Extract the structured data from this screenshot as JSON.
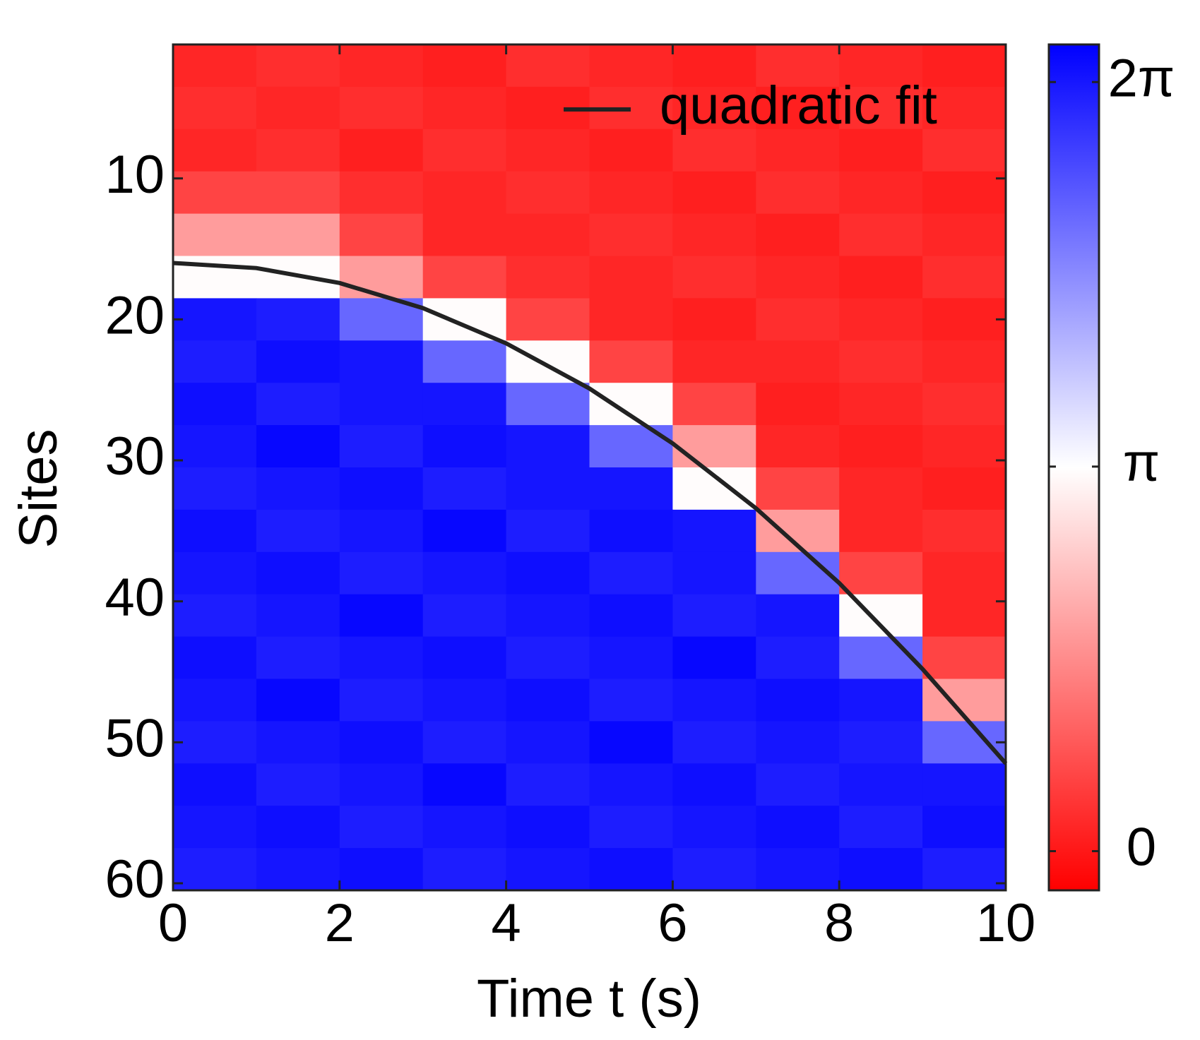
{
  "chart_data": {
    "type": "heatmap",
    "xlabel": "Time t (s)",
    "ylabel": "Sites",
    "x": [
      0.5,
      1.5,
      2.5,
      3.5,
      4.5,
      5.5,
      6.5,
      7.5,
      8.5,
      9.5
    ],
    "y": [
      2,
      5,
      8,
      11,
      14,
      17,
      20,
      23,
      26,
      29,
      32,
      35,
      38,
      41,
      44,
      47,
      50,
      53,
      56,
      59
    ],
    "z": [
      [
        0.2,
        0.3,
        0.2,
        0.1,
        0.3,
        0.2,
        0.1,
        0.3,
        0.2,
        0.1
      ],
      [
        0.3,
        0.2,
        0.3,
        0.2,
        0.1,
        0.3,
        0.2,
        0.1,
        0.3,
        0.2
      ],
      [
        0.2,
        0.3,
        0.1,
        0.3,
        0.2,
        0.1,
        0.3,
        0.2,
        0.1,
        0.3
      ],
      [
        0.6,
        0.6,
        0.3,
        0.2,
        0.3,
        0.2,
        0.1,
        0.3,
        0.2,
        0.1
      ],
      [
        1.8,
        1.8,
        0.6,
        0.2,
        0.2,
        0.3,
        0.2,
        0.1,
        0.3,
        0.2
      ],
      [
        3.1,
        3.1,
        1.8,
        0.6,
        0.3,
        0.2,
        0.3,
        0.2,
        0.1,
        0.3
      ],
      [
        6.3,
        6.2,
        5.2,
        3.1,
        0.6,
        0.2,
        0.1,
        0.3,
        0.2,
        0.1
      ],
      [
        6.2,
        6.4,
        6.3,
        5.2,
        3.1,
        0.6,
        0.2,
        0.2,
        0.3,
        0.2
      ],
      [
        6.4,
        6.2,
        6.3,
        6.3,
        5.2,
        3.1,
        0.6,
        0.1,
        0.2,
        0.3
      ],
      [
        6.3,
        6.5,
        6.2,
        6.4,
        6.3,
        5.2,
        1.8,
        0.2,
        0.1,
        0.2
      ],
      [
        6.2,
        6.3,
        6.4,
        6.2,
        6.3,
        6.3,
        3.1,
        0.6,
        0.2,
        0.1
      ],
      [
        6.4,
        6.2,
        6.3,
        6.5,
        6.2,
        6.4,
        6.3,
        1.8,
        0.2,
        0.3
      ],
      [
        6.3,
        6.4,
        6.2,
        6.3,
        6.4,
        6.2,
        6.3,
        5.2,
        0.6,
        0.2
      ],
      [
        6.2,
        6.3,
        6.5,
        6.2,
        6.3,
        6.4,
        6.2,
        6.3,
        3.1,
        0.2
      ],
      [
        6.4,
        6.2,
        6.3,
        6.4,
        6.2,
        6.3,
        6.5,
        6.2,
        5.2,
        0.6
      ],
      [
        6.3,
        6.5,
        6.2,
        6.3,
        6.4,
        6.2,
        6.3,
        6.4,
        6.3,
        1.8
      ],
      [
        6.2,
        6.3,
        6.4,
        6.2,
        6.3,
        6.5,
        6.2,
        6.3,
        6.2,
        5.2
      ],
      [
        6.4,
        6.2,
        6.3,
        6.5,
        6.2,
        6.3,
        6.4,
        6.2,
        6.3,
        6.3
      ],
      [
        6.3,
        6.4,
        6.2,
        6.3,
        6.4,
        6.2,
        6.3,
        6.4,
        6.2,
        6.4
      ],
      [
        6.2,
        6.3,
        6.4,
        6.2,
        6.3,
        6.4,
        6.2,
        6.3,
        6.4,
        6.2
      ]
    ],
    "colormap": [
      "#ff0000",
      "#ffffff",
      "#0000ff"
    ],
    "clim": [
      -0.32,
      6.59
    ],
    "cticks": [
      0,
      {
        "value": 3.1416,
        "label": "π"
      },
      {
        "value": 6.2832,
        "label": "2π"
      }
    ],
    "xlim": [
      0,
      10
    ],
    "xticks": [
      0,
      2,
      4,
      6,
      8,
      10
    ],
    "ylim": [
      0.5,
      60.5
    ],
    "yticks": [
      10,
      20,
      30,
      40,
      50,
      60
    ],
    "series": [
      {
        "name": "quadratic fit",
        "color": "#222222",
        "x": [
          0,
          1,
          2,
          3,
          4,
          5,
          6,
          7,
          8,
          9,
          10
        ],
        "values": [
          16,
          16.36,
          17.42,
          19.2,
          21.7,
          24.9,
          28.8,
          33.4,
          38.7,
          44.8,
          51.5
        ]
      }
    ],
    "legend": "upper right"
  }
}
